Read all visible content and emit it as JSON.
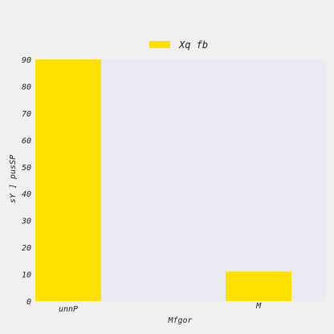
{
  "chart_data": {
    "type": "bar",
    "title": "",
    "xlabel": "Mfgor",
    "ylabel": "sY ] pusSP",
    "categories": [
      "unnP",
      "M"
    ],
    "series": [
      {
        "name": "Xq fb",
        "values": [
          90,
          11
        ],
        "color": "#ffe100"
      }
    ],
    "ylim": [
      0,
      90
    ],
    "yticks": [
      0,
      10,
      20,
      30,
      40,
      50,
      60,
      70,
      80,
      90
    ],
    "grid": false,
    "legend": "top-center",
    "plot_background": "#eaeaf2",
    "page_background": "#f0f0f0"
  }
}
